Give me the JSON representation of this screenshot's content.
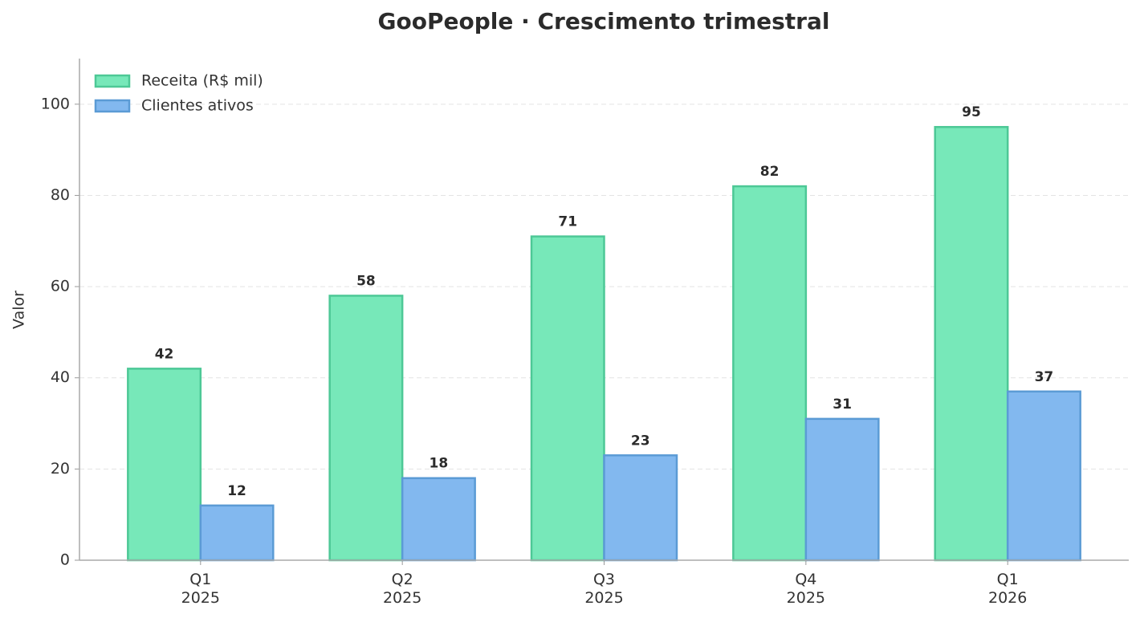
{
  "chart_data": {
    "type": "bar",
    "title": "GooPeople · Crescimento trimestral",
    "y_label": "Valor",
    "categories": [
      "Q1\n2025",
      "Q2\n2025",
      "Q3\n2025",
      "Q4\n2025",
      "Q1\n2026"
    ],
    "series": [
      {
        "name": "Receita (R$ mil)",
        "color": "#77e8b9",
        "values": [
          42,
          58,
          71,
          82,
          95
        ]
      },
      {
        "name": "Clientes ativos",
        "color": "#82b8ef",
        "values": [
          12,
          18,
          23,
          31,
          37
        ]
      }
    ],
    "ylim": [
      0,
      110
    ],
    "yticks": [
      0,
      20,
      40,
      60,
      80,
      100
    ],
    "grid": true,
    "legend": "upper-left"
  }
}
